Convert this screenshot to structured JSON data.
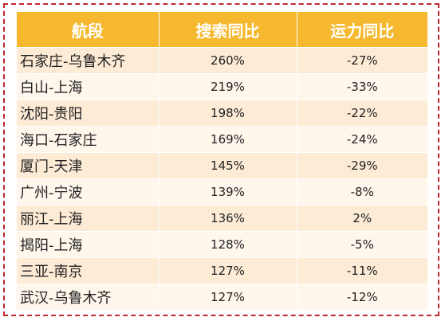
{
  "table": {
    "headers": [
      "航段",
      "搜索同比",
      "运力同比"
    ],
    "rows": [
      {
        "route": "石家庄-乌鲁木齐",
        "search_yoy": "260%",
        "capacity_yoy": "-27%"
      },
      {
        "route": "白山-上海",
        "search_yoy": "219%",
        "capacity_yoy": "-33%"
      },
      {
        "route": "沈阳-贵阳",
        "search_yoy": "198%",
        "capacity_yoy": "-22%"
      },
      {
        "route": "海口-石家庄",
        "search_yoy": "169%",
        "capacity_yoy": "-24%"
      },
      {
        "route": "厦门-天津",
        "search_yoy": "145%",
        "capacity_yoy": "-29%"
      },
      {
        "route": "广州-宁波",
        "search_yoy": "139%",
        "capacity_yoy": "-8%"
      },
      {
        "route": "丽江-上海",
        "search_yoy": "136%",
        "capacity_yoy": "2%"
      },
      {
        "route": "揭阳-上海",
        "search_yoy": "128%",
        "capacity_yoy": "-5%"
      },
      {
        "route": "三亚-南京",
        "search_yoy": "127%",
        "capacity_yoy": "-11%"
      },
      {
        "route": "武汉-乌鲁木齐",
        "search_yoy": "127%",
        "capacity_yoy": "-12%"
      }
    ]
  },
  "colors": {
    "header_bg": "#f5b82e",
    "header_text": "#ffffff",
    "row_odd": "#fdebd6",
    "row_even": "#fff6ec",
    "frame_border": "#c0272d"
  }
}
